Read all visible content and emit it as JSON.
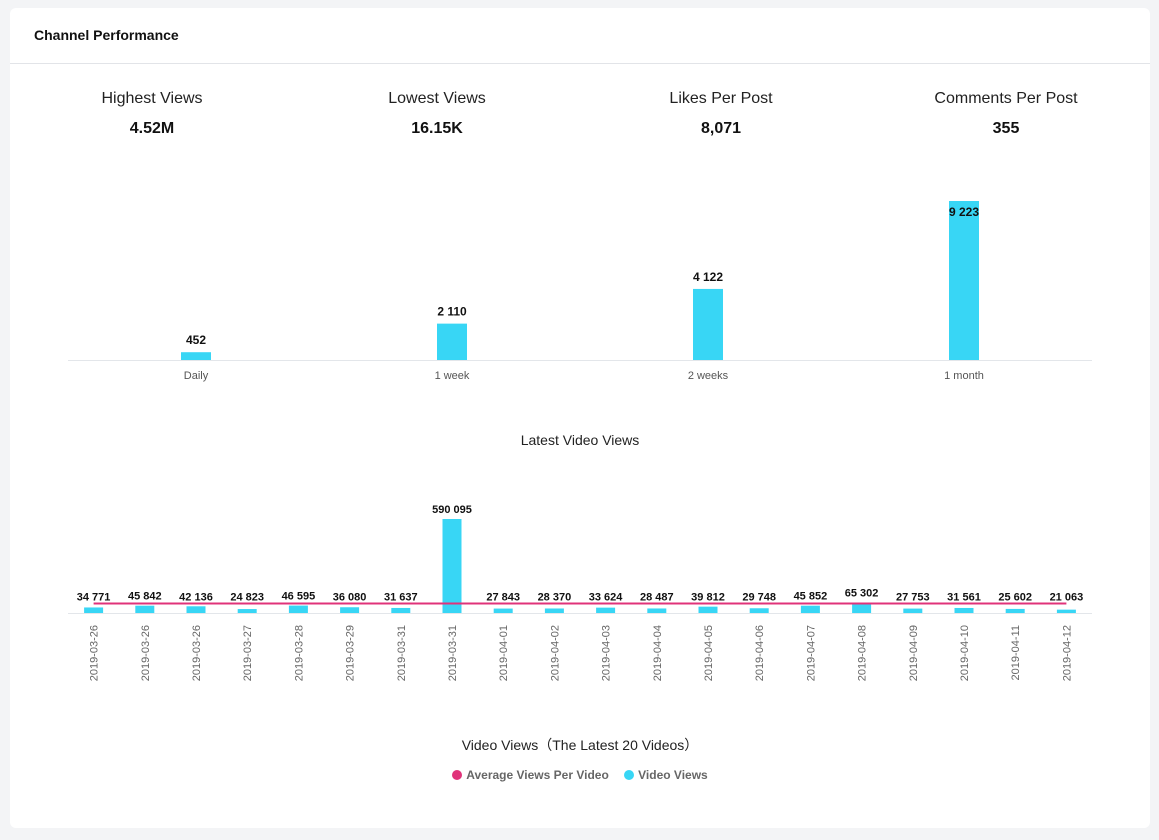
{
  "header": {
    "title": "Channel Performance"
  },
  "stats": [
    {
      "label": "Highest Views",
      "value": "4.52M"
    },
    {
      "label": "Lowest Views",
      "value": "16.15K"
    },
    {
      "label": "Likes Per Post",
      "value": "8,071"
    },
    {
      "label": "Comments Per Post",
      "value": "355"
    }
  ],
  "colors": {
    "bar": "#38d6f5",
    "average_line": "#e0337a"
  },
  "chart_data": [
    {
      "type": "bar",
      "categories": [
        "Daily",
        "1 week",
        "2 weeks",
        "1 month"
      ],
      "values": [
        452,
        2110,
        4122,
        9223
      ],
      "data_labels": [
        "452",
        "2 110",
        "4 122",
        "9 223"
      ],
      "ylim": [
        0,
        9223
      ],
      "grid": false
    },
    {
      "type": "bar",
      "title": "Latest Video Views",
      "xlabel": "Video Views（The Latest 20 Videos）",
      "categories": [
        "2019-03-26",
        "2019-03-26",
        "2019-03-26",
        "2019-03-27",
        "2019-03-28",
        "2019-03-29",
        "2019-03-31",
        "2019-03-31",
        "2019-04-01",
        "2019-04-02",
        "2019-04-03",
        "2019-04-04",
        "2019-04-05",
        "2019-04-06",
        "2019-04-07",
        "2019-04-08",
        "2019-04-09",
        "2019-04-10",
        "2019-04-11",
        "2019-04-12"
      ],
      "series": [
        {
          "name": "Video Views",
          "type": "bar",
          "values": [
            34771,
            45842,
            42136,
            24823,
            46595,
            36080,
            31637,
            590095,
            27843,
            28370,
            33624,
            28487,
            39812,
            29748,
            45852,
            65302,
            27753,
            31561,
            25602,
            21063
          ],
          "data_labels": [
            "34 771",
            "45 842",
            "42 136",
            "24 823",
            "46 595",
            "36 080",
            "31 637",
            "590 095",
            "27 843",
            "28 370",
            "33 624",
            "28 487",
            "39 812",
            "29 748",
            "45 852",
            "65 302",
            "27 753",
            "31 561",
            "25 602",
            "21 063"
          ]
        },
        {
          "name": "Average Views Per Video",
          "type": "line",
          "value": 59365
        }
      ],
      "ylim": [
        0,
        590095
      ],
      "legend": "bottom-center",
      "grid": false
    }
  ]
}
